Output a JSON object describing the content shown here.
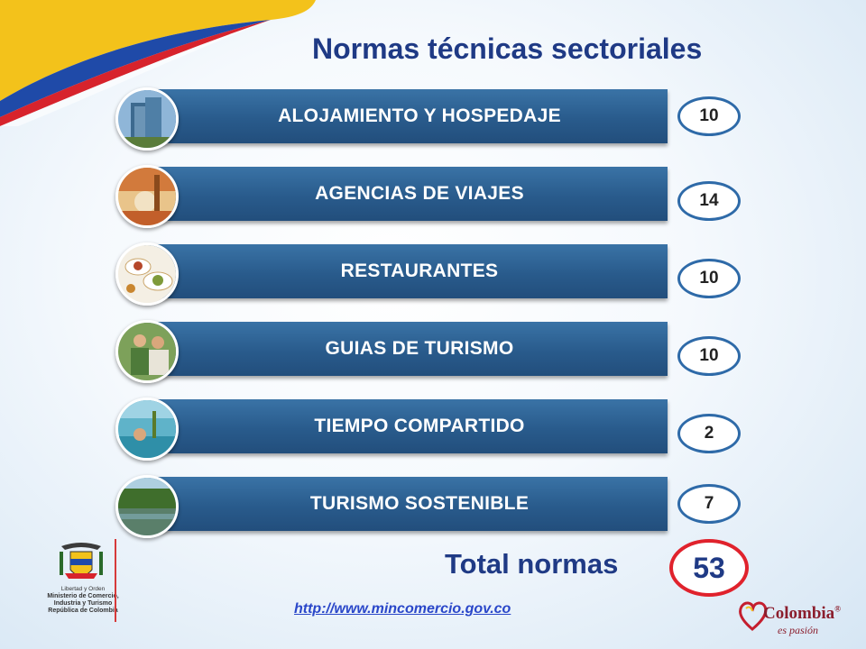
{
  "title": "Normas técnicas sectoriales",
  "sectors": [
    {
      "label": "ALOJAMIENTO Y HOSPEDAJE",
      "count": "10",
      "image_icon": "hotel-photo-icon"
    },
    {
      "label": "AGENCIAS DE VIAJES",
      "count": "14",
      "image_icon": "travel-photo-icon"
    },
    {
      "label": "RESTAURANTES",
      "count": "10",
      "image_icon": "food-photo-icon"
    },
    {
      "label": "GUIAS DE TURISMO",
      "count": "10",
      "image_icon": "guide-photo-icon"
    },
    {
      "label": "TIEMPO COMPARTIDO",
      "count": "2",
      "image_icon": "timeshare-photo-icon"
    },
    {
      "label": "TURISMO SOSTENIBLE",
      "count": "7",
      "image_icon": "nature-photo-icon"
    }
  ],
  "total": {
    "label": "Total normas",
    "value": "53"
  },
  "url": "http://www.mincomercio.gov.co",
  "ministry": {
    "motto": "Libertad y Orden",
    "line1": "Ministerio de Comercio,",
    "line2": "Industria y Turismo",
    "line3": "República de Colombia"
  },
  "brand": {
    "name": "Colombia",
    "tagline": "es pasión",
    "mark": "®"
  },
  "colors": {
    "title": "#1f3a85",
    "bar": "#295b8c",
    "badge_border": "#2e6aa8",
    "total_border": "#e0222c",
    "swoosh_yellow": "#f3c21b",
    "swoosh_blue": "#1f4aa8",
    "swoosh_red": "#d7232c",
    "link": "#2a47c9"
  }
}
